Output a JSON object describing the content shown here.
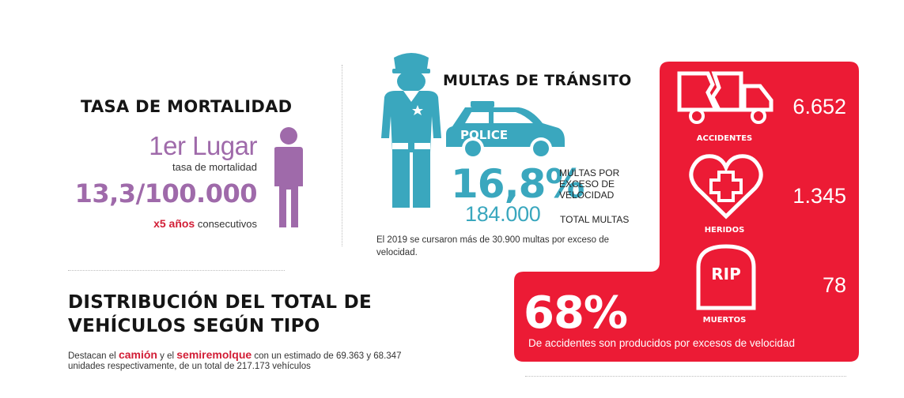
{
  "mortality": {
    "title": "TASA DE MORTALIDAD",
    "place": "1er Lugar",
    "place_sub": "tasa de mortalidad",
    "rate": "13,3/100.000",
    "years_highlight": "x5 años",
    "years_rest": "consecutivos",
    "icon": "person-icon",
    "color": "#9f6aaa"
  },
  "fines": {
    "title": "MULTAS DE TRÁNSITO",
    "police_text": "POLICE",
    "percent": "16,8%",
    "percent_label": "MULTAS POR EXCESO DE VELOCIDAD",
    "total": "184.000",
    "total_label": "TOTAL MULTAS",
    "note": "El 2019 se cursaron más de 30.900 multas por exceso de velocidad.",
    "color": "#3aa7be"
  },
  "distribution": {
    "title": "DISTRIBUCIÓN DEL TOTAL DE VEHÍCULOS SEGÚN TIPO",
    "text_1": "Destacan el",
    "hl_1": "camión",
    "text_2": "y el",
    "hl_2": "semiremolque",
    "text_3": "con un estimado de 69.363 y 68.347 unidades respectivamente, de un total de 217.173 vehículos"
  },
  "accidents": {
    "accidents_label": "ACCIDENTES",
    "accidents_value": "6.652",
    "injured_label": "HERIDOS",
    "injured_value": "1.345",
    "dead_label": "MUERTOS",
    "dead_value": "78",
    "rip_text": "RIP",
    "big_percent": "68%",
    "big_percent_text": "De accidentes son producidos por excesos de velocidad",
    "color": "#ec1b35"
  }
}
